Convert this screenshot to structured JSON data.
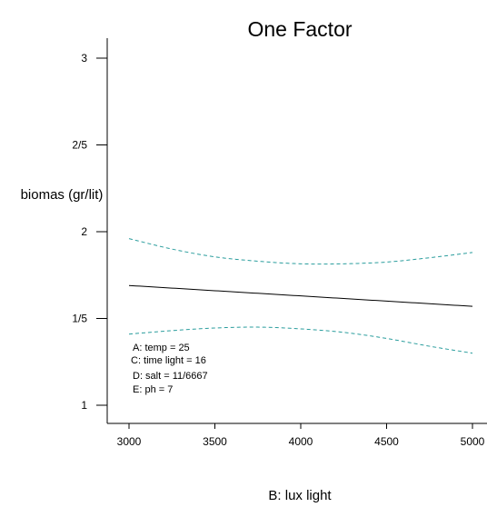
{
  "chart_data": {
    "type": "line",
    "title": "One Factor",
    "xlabel": "B: lux light",
    "ylabel": "biomas (gr/lit)",
    "xlim": [
      2900,
      5070
    ],
    "ylim": [
      0.85,
      3.25
    ],
    "x_ticks": [
      {
        "value": 3000,
        "label": "3000"
      },
      {
        "value": 3500,
        "label": "3500"
      },
      {
        "value": 4000,
        "label": "4000"
      },
      {
        "value": 4500,
        "label": "4500"
      },
      {
        "value": 5000,
        "label": "5000"
      }
    ],
    "y_ticks": [
      {
        "value": 1,
        "label": "1"
      },
      {
        "value": 1.5,
        "label": "1/5"
      },
      {
        "value": 2,
        "label": "2"
      },
      {
        "value": 2.5,
        "label": "2/5"
      },
      {
        "value": 3,
        "label": "3"
      }
    ],
    "x": [
      3000,
      3250,
      3500,
      3750,
      4000,
      4250,
      4500,
      4750,
      5000
    ],
    "series": [
      {
        "role": "prediction",
        "style": "solid",
        "color": "#000000",
        "values": [
          1.69,
          1.675,
          1.66,
          1.645,
          1.63,
          1.615,
          1.6,
          1.585,
          1.57
        ]
      },
      {
        "role": "upper-ci",
        "style": "dashed",
        "color": "#2a9d9d",
        "values": [
          1.96,
          1.9,
          1.855,
          1.83,
          1.815,
          1.815,
          1.825,
          1.85,
          1.88
        ]
      },
      {
        "role": "lower-ci",
        "style": "dashed",
        "color": "#2a9d9d",
        "values": [
          1.41,
          1.43,
          1.445,
          1.45,
          1.44,
          1.42,
          1.385,
          1.34,
          1.3
        ]
      }
    ],
    "annotations": [
      "A: temp = 25",
      "C: time light = 16",
      "D: salt = 11/6667",
      "E: ph = 7"
    ]
  }
}
